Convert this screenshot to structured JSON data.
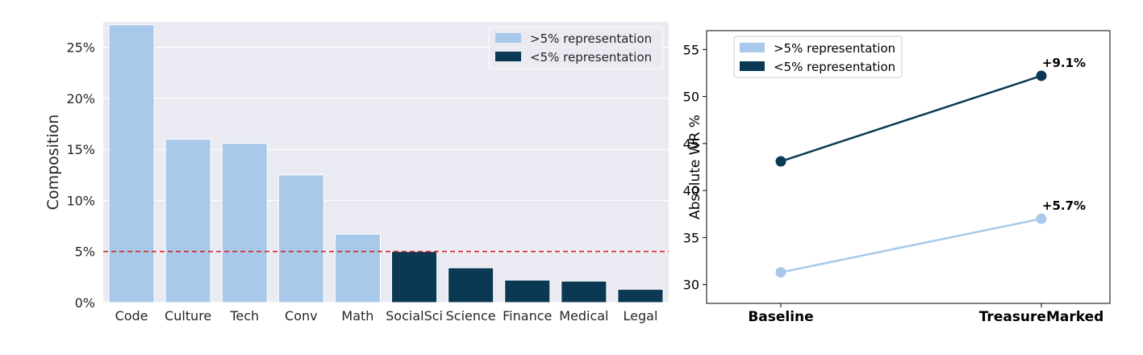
{
  "chart_data": [
    {
      "type": "bar",
      "categories": [
        "Code",
        "Culture",
        "Tech",
        "Conv",
        "Math",
        "SocialSci",
        "Science",
        "Finance",
        "Medical",
        "Legal"
      ],
      "values": [
        27.2,
        16.0,
        15.6,
        12.5,
        6.7,
        5.0,
        3.4,
        2.2,
        2.1,
        1.3
      ],
      "groups": [
        ">5% representation",
        ">5% representation",
        ">5% representation",
        ">5% representation",
        ">5% representation",
        "<5% representation",
        "<5% representation",
        "<5% representation",
        "<5% representation",
        "<5% representation"
      ],
      "title": "",
      "xlabel": "",
      "ylabel": "Composition",
      "ylim": [
        0,
        27.5
      ],
      "yticks": [
        0,
        5,
        10,
        15,
        20,
        25
      ],
      "ytick_labels": [
        "0%",
        "5%",
        "10%",
        "15%",
        "20%",
        "25%"
      ],
      "reference_line": {
        "y": 5,
        "style": "dashed",
        "color": "#d62728"
      },
      "legend": {
        "position": "top-right",
        "entries": [
          ">5% representation",
          "<5% representation"
        ]
      },
      "colors": {
        ">5% representation": "#a9c9ea",
        "<5% representation": "#0b3954"
      },
      "grid": true,
      "background": "#eaeaf2"
    },
    {
      "type": "line",
      "x": [
        "Baseline",
        "TreasureMarked"
      ],
      "series": [
        {
          "name": ">5% representation",
          "values": [
            31.3,
            37.0
          ],
          "color": "#a9c9ea",
          "annotation": "+5.7%"
        },
        {
          "name": "<5% representation",
          "values": [
            43.1,
            52.2
          ],
          "color": "#0b3954",
          "annotation": "+9.1%"
        }
      ],
      "title": "",
      "xlabel": "",
      "ylabel": "Absolute WR %",
      "ylim": [
        28,
        57
      ],
      "yticks": [
        30,
        35,
        40,
        45,
        50,
        55
      ],
      "legend": {
        "position": "top-left"
      },
      "grid": false
    }
  ]
}
